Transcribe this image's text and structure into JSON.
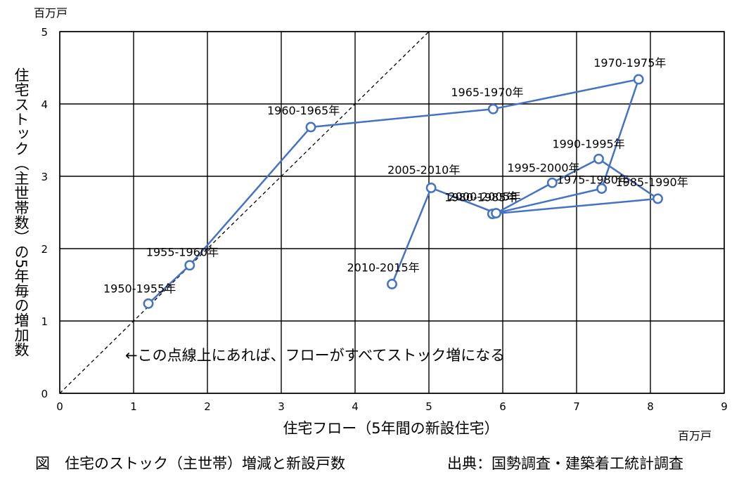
{
  "chart_data": {
    "type": "scatter",
    "xlabel": "住宅フロー（5年間の新設住宅）",
    "ylabel": "住宅ストック（主世帯数）の5年毎の増加数",
    "x_unit": "百万戸",
    "y_unit": "百万戸",
    "xlim": [
      0,
      9
    ],
    "ylim": [
      0,
      5
    ],
    "x_ticks": [
      "0",
      "1",
      "2",
      "3",
      "4",
      "5",
      "6",
      "7",
      "8",
      "9"
    ],
    "y_ticks": [
      "0",
      "1",
      "2",
      "3",
      "4",
      "5"
    ],
    "grid": true,
    "reference_line": {
      "from": [
        0,
        0
      ],
      "to": [
        5,
        5
      ]
    },
    "annotation": "←この点線上にあれば、フローがすべてストック増になる",
    "points": [
      {
        "label": "1950-1955年",
        "x": 1.2,
        "y": 1.24
      },
      {
        "label": "1955-1960年",
        "x": 1.76,
        "y": 1.77
      },
      {
        "label": "1960-1965年",
        "x": 3.4,
        "y": 3.68
      },
      {
        "label": "1965-1970年",
        "x": 5.87,
        "y": 3.93
      },
      {
        "label": "1970-1975年",
        "x": 7.84,
        "y": 4.34
      },
      {
        "label": "1975-1980年",
        "x": 7.34,
        "y": 2.83
      },
      {
        "label": "1980-1985年",
        "x": 5.86,
        "y": 2.48
      },
      {
        "label": "1985-1990年",
        "x": 8.1,
        "y": 2.69
      },
      {
        "label": "1990-1995年",
        "x": 7.3,
        "y": 3.24
      },
      {
        "label": "1995-2000年",
        "x": 6.67,
        "y": 2.91
      },
      {
        "label": "2000-2005年",
        "x": 5.91,
        "y": 2.49
      },
      {
        "label": "2005-2010年",
        "x": 5.03,
        "y": 2.84
      },
      {
        "label": "2010-2015年",
        "x": 4.5,
        "y": 1.51
      }
    ]
  },
  "caption_left": "図　住宅のストック（主世帯）増減と新設戸数",
  "caption_right": "出典：国勢調査・建築着工統計調査",
  "colors": {
    "series": "#4472C4",
    "grid": "#000000",
    "reference": "#000000"
  }
}
